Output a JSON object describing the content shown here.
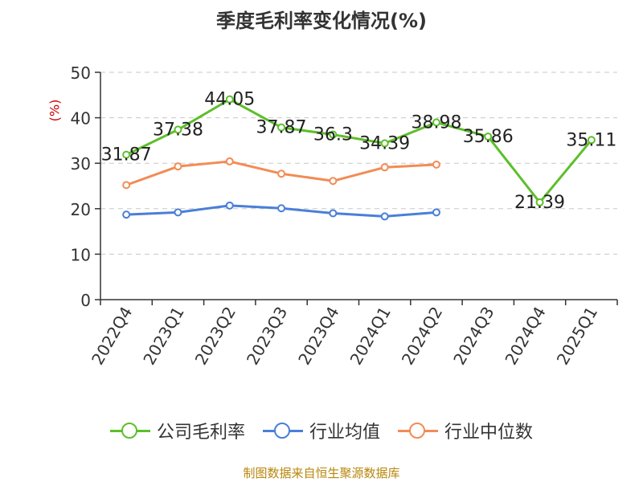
{
  "chart_data": {
    "type": "line",
    "title": "季度毛利率变化情况(%)",
    "ylabel": "(%)",
    "ylim": [
      0,
      50
    ],
    "yticks": [
      0,
      10,
      20,
      30,
      40,
      50
    ],
    "grid": true,
    "legend_position": "bottom",
    "categories": [
      "2022Q4",
      "2023Q1",
      "2023Q2",
      "2023Q3",
      "2023Q4",
      "2024Q1",
      "2024Q2",
      "2024Q3",
      "2024Q4",
      "2025Q1"
    ],
    "series": [
      {
        "name": "公司毛利率",
        "color": "#5cbf2a",
        "labeled": true,
        "values": [
          31.87,
          37.38,
          44.05,
          37.87,
          36.3,
          34.39,
          38.98,
          35.86,
          21.39,
          35.11
        ]
      },
      {
        "name": "行业均值",
        "color": "#4a7fd8",
        "labeled": false,
        "values": [
          18.7,
          19.2,
          20.7,
          20.1,
          19.0,
          18.3,
          19.2,
          null,
          null,
          null
        ]
      },
      {
        "name": "行业中位数",
        "color": "#f28c55",
        "labeled": false,
        "values": [
          25.2,
          29.3,
          30.4,
          27.7,
          26.1,
          29.1,
          29.7,
          null,
          null,
          null
        ]
      }
    ],
    "data_labels": [
      "31.87",
      "37.38",
      "44.05",
      "37.87",
      "36.3",
      "34.39",
      "38.98",
      "35.86",
      "21.39",
      "35.11"
    ]
  },
  "source": "制图数据来自恒生聚源数据库"
}
